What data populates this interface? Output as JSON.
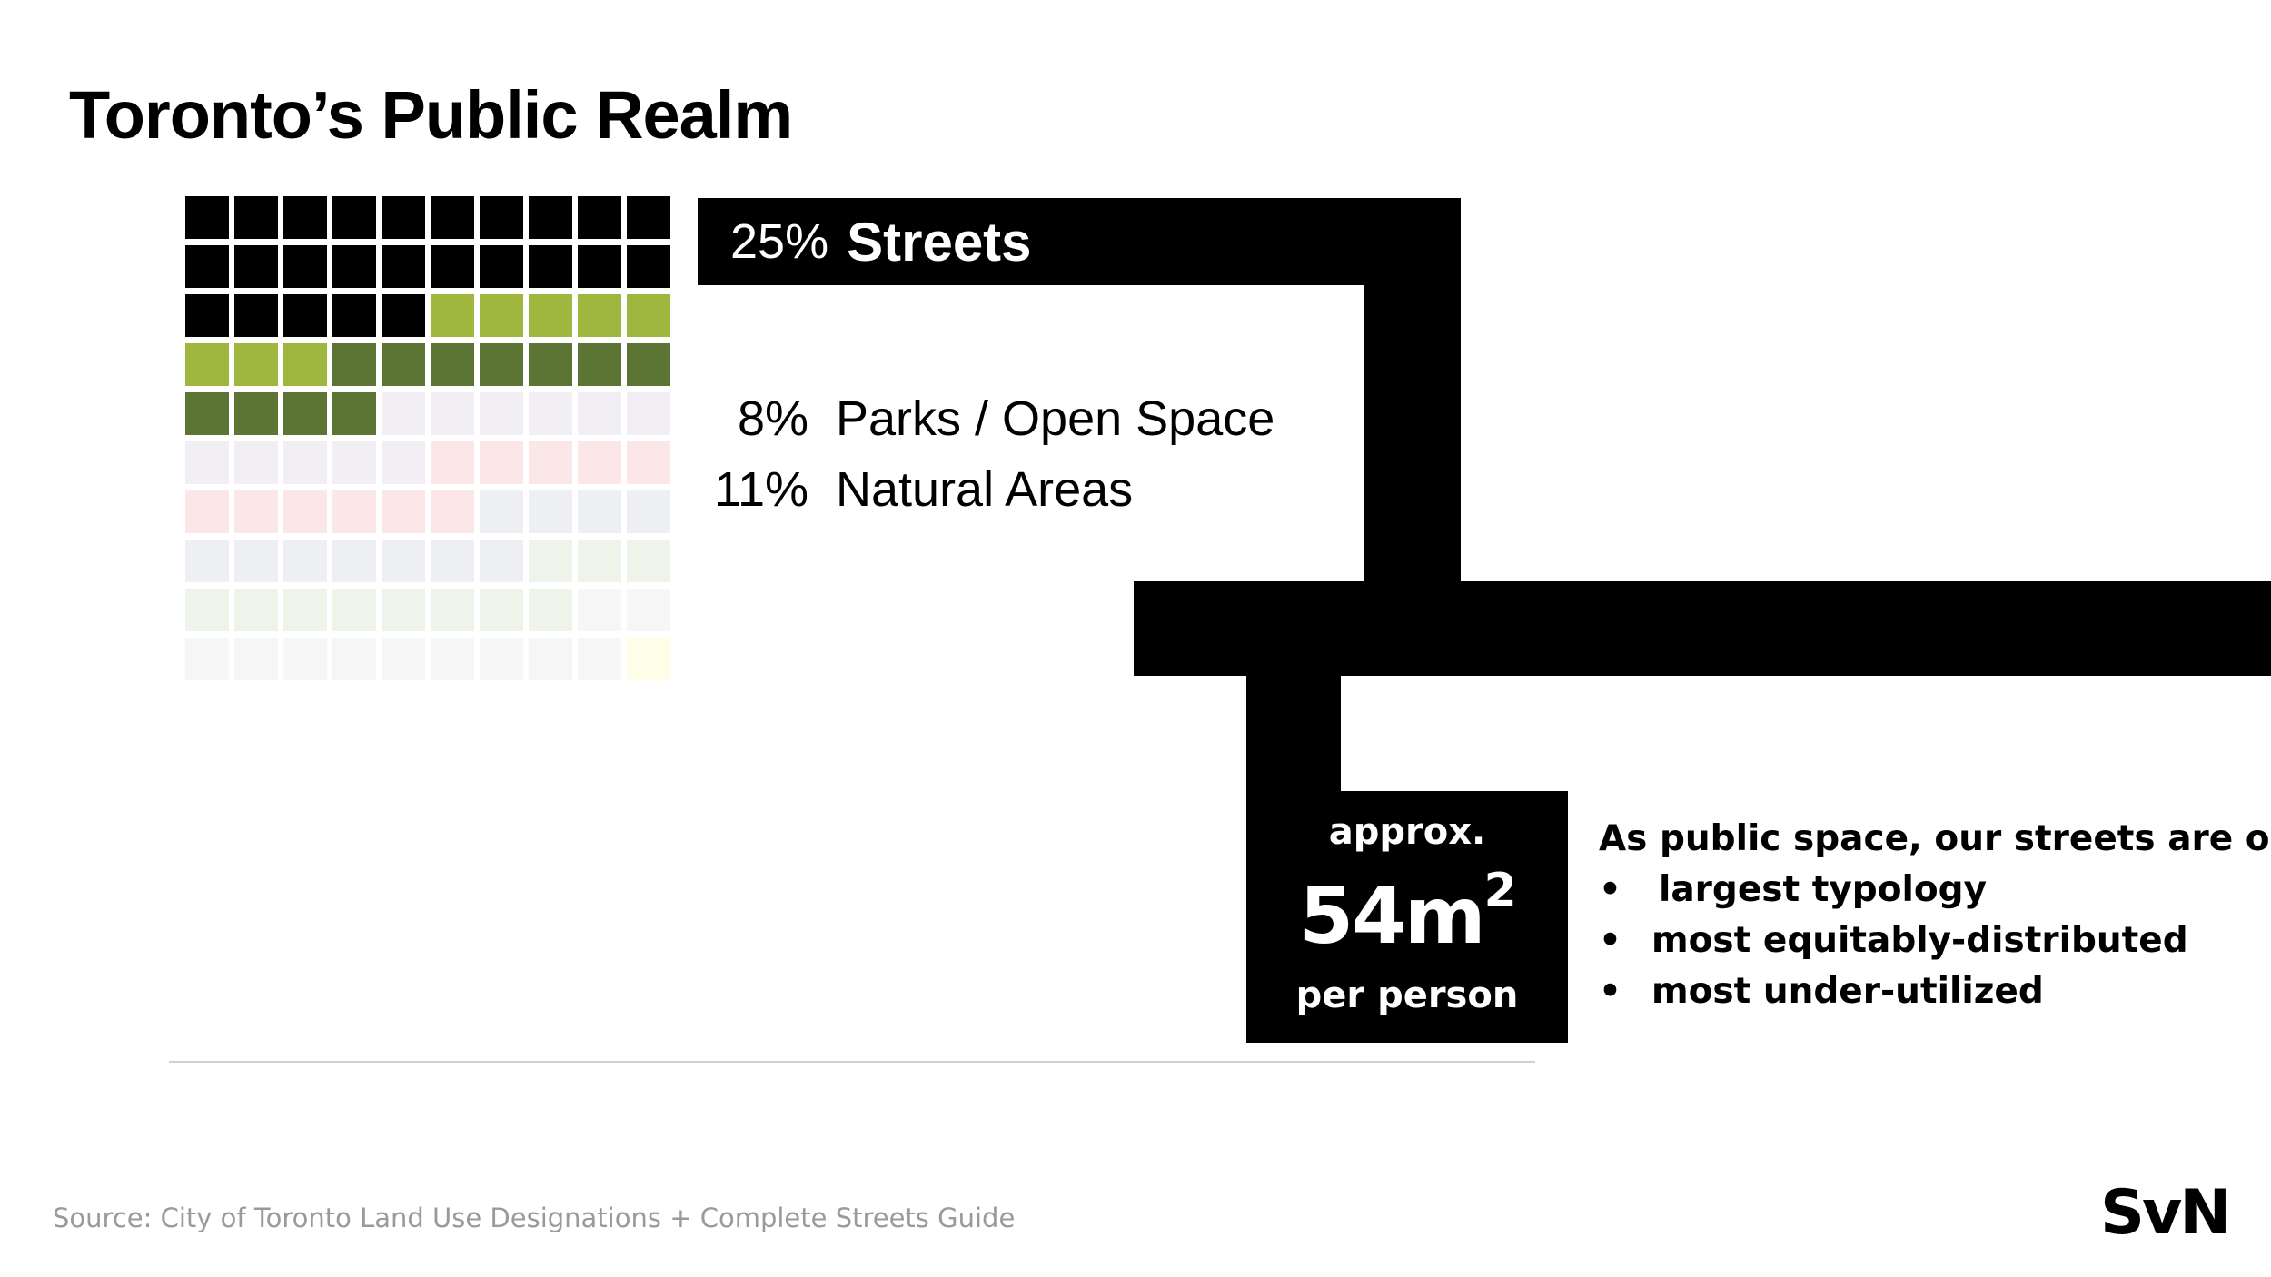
{
  "title": "Toronto’s Public Realm",
  "chart_data": {
    "type": "waffle",
    "grid": [
      10,
      10
    ],
    "categories": [
      {
        "label": "Streets",
        "percent": 25,
        "color": "#000000"
      },
      {
        "label": "Parks / Open Space",
        "percent": 8,
        "color": "#9fb63f"
      },
      {
        "label": "Natural Areas",
        "percent": 11,
        "color": "#5c7535"
      }
    ],
    "faded_colors": [
      "#f1eff4",
      "#fbe7e8",
      "#eeeff3",
      "#eef4ea",
      "#f6f6f6",
      "#fefde8"
    ],
    "labels": {
      "streets": {
        "pct": "25%",
        "name": "Streets"
      },
      "parks": {
        "pct": "8%",
        "name": "Parks / Open Space"
      },
      "natural": {
        "pct": "11%",
        "name": "Natural Areas"
      }
    }
  },
  "stat": {
    "prefix": "approx.",
    "value": "54m",
    "exponent": "2",
    "suffix": "per person"
  },
  "bullets": {
    "heading": "As public space, our streets are our:",
    "items": [
      "largest typology",
      "most equitably-distributed",
      "most under-utilized"
    ]
  },
  "source": "Source: City of Toronto Land Use Designations + Complete Streets Guide",
  "logo": "SvN"
}
